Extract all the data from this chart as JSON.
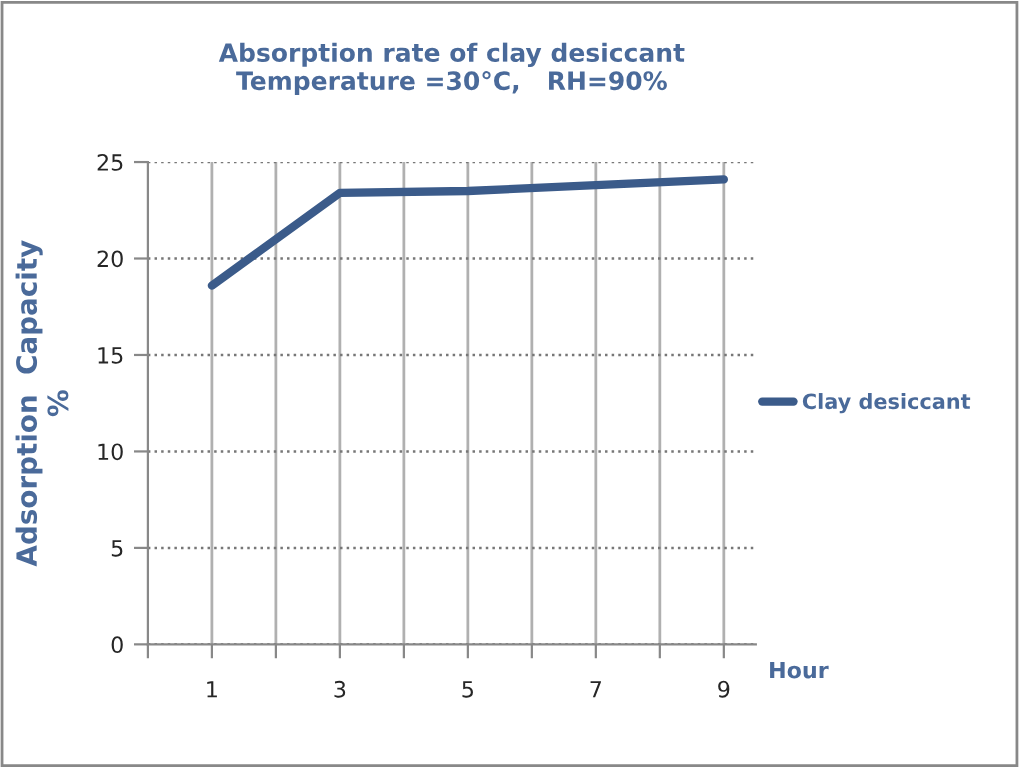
{
  "chart_data": {
    "type": "line",
    "title": "Absorption rate of clay desiccant\nTemperature =30°C,   RH=90%",
    "xlabel": "Hour",
    "ylabel": "Adsorption  Capacity\n%",
    "x": [
      1,
      3,
      5,
      7,
      9
    ],
    "series": [
      {
        "name": "Clay desiccant",
        "color": "#3b5b8a",
        "values": [
          18.6,
          23.4,
          23.5,
          23.8,
          24.1
        ]
      }
    ],
    "xlim": [
      0,
      9.5
    ],
    "xticks": [
      {
        "value": 0,
        "label": null
      },
      1,
      {
        "value": 2,
        "label": null
      },
      3,
      {
        "value": 4,
        "label": null
      },
      5,
      {
        "value": 6,
        "label": null
      },
      7,
      {
        "value": 8,
        "label": null
      },
      9
    ],
    "ylim": [
      0,
      25
    ],
    "yticks": [
      0,
      5,
      10,
      15,
      20,
      25
    ],
    "grid": true,
    "legend": "right",
    "marker": "none",
    "line_style": "solid"
  }
}
